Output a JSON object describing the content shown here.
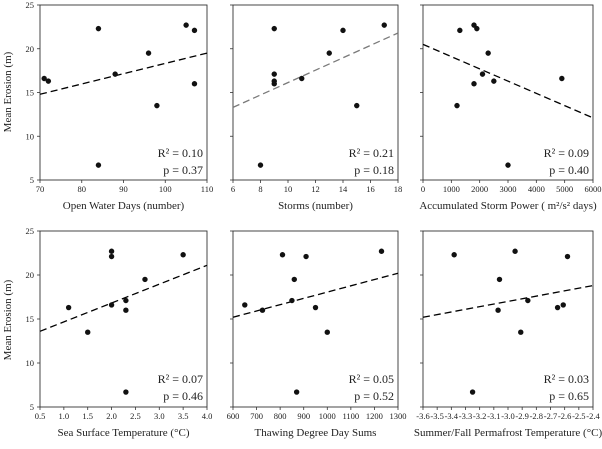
{
  "figure": {
    "ylabel": "Mean Erosion (m)"
  },
  "chart_data": [
    {
      "type": "scatter",
      "xlabel": "Open Water Days (number)",
      "ylabel": "Mean Erosion (m)",
      "xlim": [
        70,
        110
      ],
      "ylim": [
        5,
        25
      ],
      "xticks": [
        70,
        80,
        90,
        100,
        110
      ],
      "xtick_labels": [
        "70",
        "80",
        "90",
        "100",
        "110"
      ],
      "yticks": [
        5,
        10,
        15,
        20,
        25
      ],
      "ytick_labels": [
        "5",
        "10",
        "15",
        "20",
        "25"
      ],
      "points": [
        [
          71,
          16.6
        ],
        [
          72,
          16.3
        ],
        [
          84,
          22.3
        ],
        [
          84,
          6.7
        ],
        [
          88,
          17.1
        ],
        [
          96,
          19.5
        ],
        [
          98,
          13.5
        ],
        [
          105,
          22.7
        ],
        [
          107,
          22.1
        ],
        [
          107,
          16.0
        ]
      ],
      "trendline": {
        "x": [
          70,
          110
        ],
        "y": [
          14.8,
          19.5
        ],
        "color": "#000000",
        "dash": "long"
      },
      "r2_label": "R² = 0.10",
      "p_label": "p = 0.37"
    },
    {
      "type": "scatter",
      "xlabel": "Storms (number)",
      "ylabel": "",
      "xlim": [
        6,
        18
      ],
      "ylim": [
        5,
        25
      ],
      "xticks": [
        6,
        8,
        10,
        12,
        14,
        16,
        18
      ],
      "xtick_labels": [
        "6",
        "8",
        "10",
        "12",
        "14",
        "16",
        "18"
      ],
      "yticks": [
        5,
        10,
        15,
        20,
        25
      ],
      "ytick_labels": [],
      "points": [
        [
          8,
          6.7
        ],
        [
          9,
          22.3
        ],
        [
          9,
          17.1
        ],
        [
          9,
          16.3
        ],
        [
          9,
          16.0
        ],
        [
          11,
          16.6
        ],
        [
          13,
          19.5
        ],
        [
          14,
          22.1
        ],
        [
          15,
          13.5
        ],
        [
          17,
          22.7
        ]
      ],
      "trendline": {
        "x": [
          6,
          18
        ],
        "y": [
          13.3,
          21.8
        ],
        "color": "#7a7a7a",
        "dash": "long"
      },
      "r2_label": "R² = 0.21",
      "p_label": "p = 0.18"
    },
    {
      "type": "scatter",
      "xlabel": "Accumulated Storm Power ( m²/s² days)",
      "ylabel": "",
      "xlim": [
        0,
        6000
      ],
      "ylim": [
        5,
        25
      ],
      "xticks": [
        0,
        1000,
        2000,
        3000,
        4000,
        5000,
        6000
      ],
      "xtick_labels": [
        "0",
        "1000",
        "2000",
        "3000",
        "4000",
        "5000",
        "6000"
      ],
      "yticks": [
        5,
        10,
        15,
        20,
        25
      ],
      "ytick_labels": [],
      "points": [
        [
          1200,
          13.5
        ],
        [
          1300,
          22.1
        ],
        [
          1800,
          22.7
        ],
        [
          1900,
          22.3
        ],
        [
          1800,
          16.0
        ],
        [
          2100,
          17.1
        ],
        [
          2300,
          19.5
        ],
        [
          2500,
          16.3
        ],
        [
          3000,
          6.7
        ],
        [
          4900,
          16.6
        ]
      ],
      "trendline": {
        "x": [
          0,
          6000
        ],
        "y": [
          20.5,
          12.1
        ],
        "color": "#000000",
        "dash": "long"
      },
      "r2_label": "R² = 0.09",
      "p_label": "p = 0.40"
    },
    {
      "type": "scatter",
      "xlabel": "Sea Surface Temperature (°C)",
      "ylabel": "Mean Erosion (m)",
      "xlim": [
        0.5,
        4.0
      ],
      "ylim": [
        5,
        25
      ],
      "xticks": [
        0.5,
        1.0,
        1.5,
        2.0,
        2.5,
        3.0,
        3.5,
        4.0
      ],
      "xtick_labels": [
        "0.5",
        "1.0",
        "1.5",
        "2.0",
        "2.5",
        "3.0",
        "3.5",
        "4.0"
      ],
      "yticks": [
        5,
        10,
        15,
        20,
        25
      ],
      "ytick_labels": [
        "5",
        "10",
        "15",
        "20",
        "25"
      ],
      "points": [
        [
          1.1,
          16.3
        ],
        [
          1.5,
          13.5
        ],
        [
          2.0,
          22.7
        ],
        [
          2.0,
          22.1
        ],
        [
          2.0,
          16.6
        ],
        [
          2.3,
          17.1
        ],
        [
          2.3,
          16.0
        ],
        [
          2.3,
          6.7
        ],
        [
          2.7,
          19.5
        ],
        [
          3.5,
          22.3
        ]
      ],
      "trendline": {
        "x": [
          0.5,
          4.0
        ],
        "y": [
          13.6,
          21.1
        ],
        "color": "#000000",
        "dash": "long"
      },
      "r2_label": "R² = 0.07",
      "p_label": "p = 0.46"
    },
    {
      "type": "scatter",
      "xlabel": "Thawing Degree Day Sums",
      "ylabel": "",
      "xlim": [
        600,
        1300
      ],
      "ylim": [
        5,
        25
      ],
      "xticks": [
        600,
        700,
        800,
        900,
        1000,
        1100,
        1200,
        1300
      ],
      "xtick_labels": [
        "600",
        "700",
        "800",
        "900",
        "1000",
        "1100",
        "1200",
        "1300"
      ],
      "yticks": [
        5,
        10,
        15,
        20,
        25
      ],
      "ytick_labels": [],
      "points": [
        [
          650,
          16.6
        ],
        [
          725,
          16.0
        ],
        [
          810,
          22.3
        ],
        [
          850,
          17.1
        ],
        [
          860,
          19.5
        ],
        [
          870,
          6.7
        ],
        [
          910,
          22.1
        ],
        [
          950,
          16.3
        ],
        [
          1000,
          13.5
        ],
        [
          1230,
          22.7
        ]
      ],
      "trendline": {
        "x": [
          600,
          1300
        ],
        "y": [
          15.2,
          20.2
        ],
        "color": "#000000",
        "dash": "long"
      },
      "r2_label": "R² = 0.05",
      "p_label": "p = 0.52"
    },
    {
      "type": "scatter",
      "xlabel": "Summer/Fall Permafrost Temperature (°C)",
      "ylabel": "",
      "xlim": [
        -3.6,
        -2.4
      ],
      "ylim": [
        5,
        25
      ],
      "xticks": [
        -3.6,
        -3.5,
        -3.4,
        -3.3,
        -3.2,
        -3.1,
        -3.0,
        -2.9,
        -2.8,
        -2.7,
        -2.6,
        -2.5,
        -2.4
      ],
      "xtick_labels": [
        "-3.6",
        "-3.5",
        "-3.4",
        "-3.3",
        "-3.2",
        "-3.1",
        "-3.0",
        "-2.9",
        "-2.8",
        "-2.7",
        "-2.6",
        "-2.5",
        "-2.4"
      ],
      "yticks": [
        5,
        10,
        15,
        20,
        25
      ],
      "ytick_labels": [],
      "points": [
        [
          -3.38,
          22.3
        ],
        [
          -3.25,
          6.7
        ],
        [
          -3.06,
          19.5
        ],
        [
          -3.07,
          16.0
        ],
        [
          -2.95,
          22.7
        ],
        [
          -2.91,
          13.5
        ],
        [
          -2.86,
          17.1
        ],
        [
          -2.65,
          16.3
        ],
        [
          -2.61,
          16.6
        ],
        [
          -2.58,
          22.1
        ]
      ],
      "trendline": {
        "x": [
          -3.6,
          -2.4
        ],
        "y": [
          15.2,
          18.8
        ],
        "color": "#000000",
        "dash": "long"
      },
      "r2_label": "R² = 0.03",
      "p_label": "p = 0.65"
    }
  ]
}
